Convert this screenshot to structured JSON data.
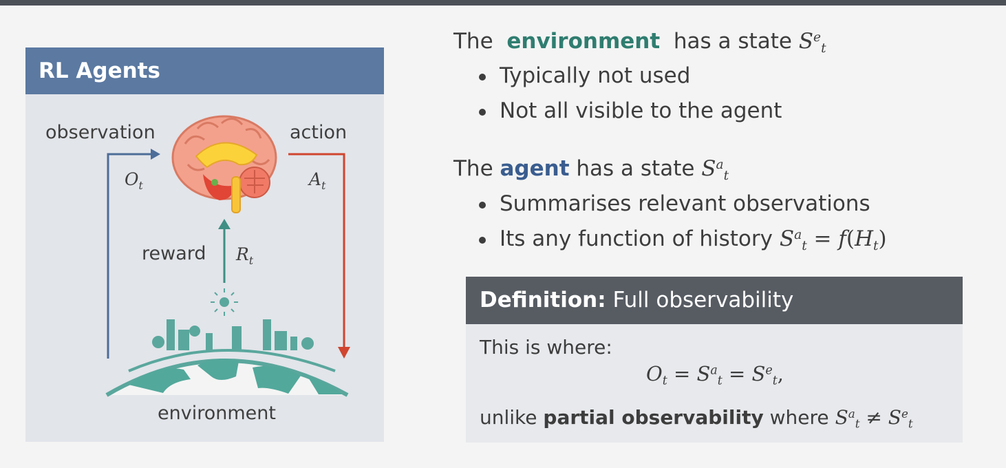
{
  "panel": {
    "title": "RL Agents",
    "observation_label": "observation",
    "action_label": "action",
    "reward_label": "reward",
    "environment_label": "environment",
    "observation_symbol": "O",
    "observation_sub": "t",
    "action_symbol": "A",
    "action_sub": "t",
    "reward_symbol": "R",
    "reward_sub": "t"
  },
  "environment_section": {
    "prefix": "The",
    "keyword": "environment",
    "suffix": "has a state",
    "bullets": [
      "Typically not used",
      "Not all visible to the agent"
    ]
  },
  "agent_section": {
    "prefix": "The",
    "keyword": "agent",
    "suffix": "has a state",
    "bullet1": "Summarises relevant observations",
    "bullet2_prefix": "Its any function of history"
  },
  "definition": {
    "label": "Definition:",
    "title": "Full observability",
    "intro": "This is where:",
    "outro_prefix": "unlike",
    "outro_bold": "partial observability",
    "outro_suffix": "where"
  },
  "colors": {
    "panel_header": "#5b79a1",
    "env_keyword": "#2f7d70",
    "agent_keyword": "#3a5d8f",
    "observation_arrow": "#4d6d99",
    "action_arrow": "#d0452f",
    "reward_arrow": "#3f8f84",
    "definition_header": "#575c63"
  }
}
